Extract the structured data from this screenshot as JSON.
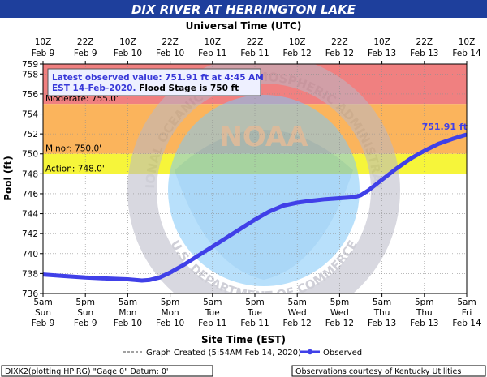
{
  "chart_data": {
    "type": "line",
    "title": "DIX RIVER AT HERRINGTON LAKE",
    "top_axis_title": "Universal Time (UTC)",
    "xlabel": "Site Time (EST)",
    "ylabel": "Pool (ft)",
    "ylim": [
      736,
      759
    ],
    "yticks": [
      736,
      738,
      740,
      742,
      744,
      746,
      748,
      750,
      752,
      754,
      756,
      758,
      759
    ],
    "x_time_range_hours": [
      0,
      120
    ],
    "top_ticks": [
      {
        "hours": 0,
        "line1": "10Z",
        "line2": "Feb 9"
      },
      {
        "hours": 12,
        "line1": "22Z",
        "line2": "Feb 9"
      },
      {
        "hours": 24,
        "line1": "10Z",
        "line2": "Feb 10"
      },
      {
        "hours": 36,
        "line1": "22Z",
        "line2": "Feb 10"
      },
      {
        "hours": 48,
        "line1": "10Z",
        "line2": "Feb 11"
      },
      {
        "hours": 60,
        "line1": "22Z",
        "line2": "Feb 11"
      },
      {
        "hours": 72,
        "line1": "10Z",
        "line2": "Feb 12"
      },
      {
        "hours": 84,
        "line1": "22Z",
        "line2": "Feb 12"
      },
      {
        "hours": 96,
        "line1": "10Z",
        "line2": "Feb 13"
      },
      {
        "hours": 108,
        "line1": "22Z",
        "line2": "Feb 13"
      },
      {
        "hours": 120,
        "line1": "10Z",
        "line2": "Feb 14"
      }
    ],
    "bottom_ticks": [
      {
        "hours": 0,
        "line1": "5am",
        "line2": "Sun",
        "line3": "Feb 9"
      },
      {
        "hours": 12,
        "line1": "5pm",
        "line2": "Sun",
        "line3": "Feb 9"
      },
      {
        "hours": 24,
        "line1": "5am",
        "line2": "Mon",
        "line3": "Feb 10"
      },
      {
        "hours": 36,
        "line1": "5pm",
        "line2": "Mon",
        "line3": "Feb 10"
      },
      {
        "hours": 48,
        "line1": "5am",
        "line2": "Tue",
        "line3": "Feb 11"
      },
      {
        "hours": 60,
        "line1": "5pm",
        "line2": "Tue",
        "line3": "Feb 11"
      },
      {
        "hours": 72,
        "line1": "5am",
        "line2": "Wed",
        "line3": "Feb 12"
      },
      {
        "hours": 84,
        "line1": "5pm",
        "line2": "Wed",
        "line3": "Feb 12"
      },
      {
        "hours": 96,
        "line1": "5am",
        "line2": "Thu",
        "line3": "Feb 13"
      },
      {
        "hours": 108,
        "line1": "5pm",
        "line2": "Thu",
        "line3": "Feb 13"
      },
      {
        "hours": 120,
        "line1": "5am",
        "line2": "Fri",
        "line3": "Feb 14"
      }
    ],
    "flood_categories": [
      {
        "label": "Moderate: 755.0'",
        "from": 755,
        "to": 759,
        "color": "#f08080"
      },
      {
        "label": "Minor: 750.0'",
        "from": 750,
        "to": 755,
        "color": "#fbb45c"
      },
      {
        "label": "Action: 748.0'",
        "from": 748,
        "to": 750,
        "color": "#f6f53a"
      }
    ],
    "series": [
      {
        "name": "Observed",
        "color": "#4040e8",
        "x_hours": [
          0,
          6,
          12,
          18,
          24,
          28,
          30,
          33,
          36,
          40,
          44,
          48,
          52,
          56,
          60,
          64,
          68,
          72,
          76,
          80,
          84,
          88,
          90,
          92,
          96,
          100,
          104,
          108,
          112,
          116,
          119.75
        ],
        "y": [
          737.9,
          737.75,
          737.6,
          737.5,
          737.42,
          737.3,
          737.35,
          737.6,
          738.1,
          738.9,
          739.8,
          740.7,
          741.6,
          742.5,
          743.4,
          744.2,
          744.8,
          745.1,
          745.3,
          745.45,
          745.55,
          745.65,
          745.85,
          746.3,
          747.4,
          748.5,
          749.5,
          750.3,
          751.0,
          751.5,
          751.91
        ]
      }
    ],
    "latest_label": "751.91 ft",
    "info_box": {
      "line1": "Latest observed value: 751.91 ft at 4:45 AM",
      "line2_a": "EST 14-Feb-2020.",
      "line2_b": " Flood Stage is 750 ft"
    },
    "legend": {
      "graph_created": "Graph Created (5:54AM Feb 14, 2020)",
      "observed": "Observed"
    },
    "footer_left": "DIXK2(plotting HPIRG) \"Gage 0\" Datum: 0'",
    "footer_right": "Observations courtesy of Kentucky Utilities",
    "watermark": {
      "logo_text": "NOAA",
      "ring_text": "NATIONAL OCEANIC AND ATMOSPHERIC ADMINISTRATION",
      "bottom_text": "U.S. DEPARTMENT OF COMMERCE"
    }
  }
}
